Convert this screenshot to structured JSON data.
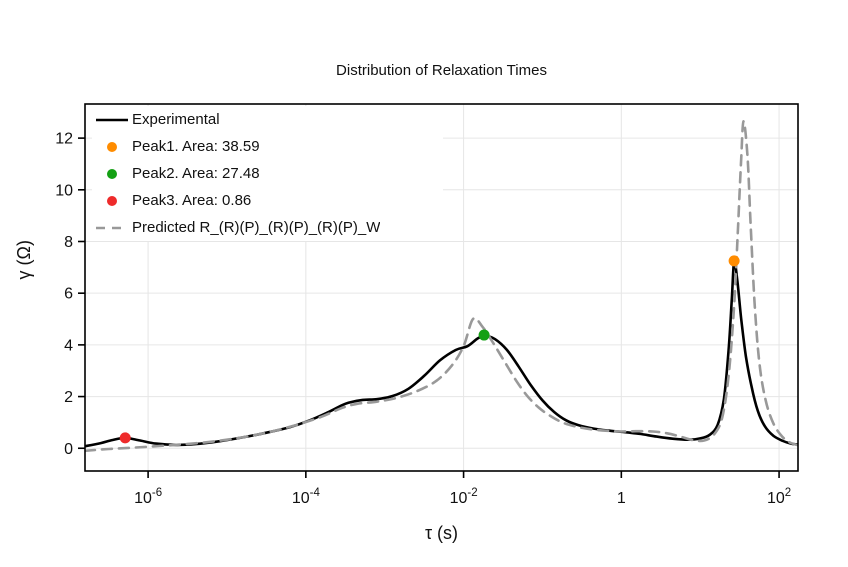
{
  "chart_data": {
    "type": "line",
    "title": "Distribution of Relaxation Times",
    "xlabel": "τ (s)",
    "ylabel": "γ (Ω)",
    "x_scale": "log10",
    "x_range": [
      -6.8,
      2.24
    ],
    "y_range": [
      -0.88,
      13.32
    ],
    "grid": true,
    "legend_position": "top-left",
    "frame_color": "#000000",
    "grid_color": "#e6e6e6",
    "x_ticks": [
      {
        "v": -6,
        "base": "10",
        "exp": "-6"
      },
      {
        "v": -4,
        "base": "10",
        "exp": "-4"
      },
      {
        "v": -2,
        "base": "10",
        "exp": "-2"
      },
      {
        "v": 0,
        "label": "1"
      },
      {
        "v": 2,
        "base": "10",
        "exp": "2"
      }
    ],
    "y_ticks": [
      0,
      2,
      4,
      6,
      8,
      10,
      12
    ],
    "series": [
      {
        "name": "Experimental",
        "color": "#000000",
        "style": "solid",
        "width": 2.6,
        "points": [
          [
            -6.8,
            0.08
          ],
          [
            -6.6,
            0.2
          ],
          [
            -6.45,
            0.32
          ],
          [
            -6.29,
            0.4
          ],
          [
            -6.1,
            0.3
          ],
          [
            -5.9,
            0.18
          ],
          [
            -5.65,
            0.13
          ],
          [
            -5.4,
            0.16
          ],
          [
            -5.1,
            0.27
          ],
          [
            -4.8,
            0.42
          ],
          [
            -4.5,
            0.6
          ],
          [
            -4.2,
            0.82
          ],
          [
            -3.95,
            1.08
          ],
          [
            -3.7,
            1.42
          ],
          [
            -3.5,
            1.72
          ],
          [
            -3.3,
            1.86
          ],
          [
            -3.1,
            1.9
          ],
          [
            -2.9,
            2.02
          ],
          [
            -2.7,
            2.3
          ],
          [
            -2.5,
            2.8
          ],
          [
            -2.3,
            3.4
          ],
          [
            -2.1,
            3.8
          ],
          [
            -1.95,
            3.95
          ],
          [
            -1.82,
            4.25
          ],
          [
            -1.73,
            4.35
          ],
          [
            -1.6,
            4.22
          ],
          [
            -1.45,
            3.8
          ],
          [
            -1.3,
            3.15
          ],
          [
            -1.15,
            2.45
          ],
          [
            -1.0,
            1.85
          ],
          [
            -0.85,
            1.4
          ],
          [
            -0.7,
            1.08
          ],
          [
            -0.55,
            0.9
          ],
          [
            -0.35,
            0.76
          ],
          [
            -0.15,
            0.68
          ],
          [
            0.05,
            0.62
          ],
          [
            0.25,
            0.55
          ],
          [
            0.45,
            0.45
          ],
          [
            0.65,
            0.37
          ],
          [
            0.85,
            0.33
          ],
          [
            1.0,
            0.38
          ],
          [
            1.12,
            0.52
          ],
          [
            1.22,
            0.9
          ],
          [
            1.3,
            1.9
          ],
          [
            1.36,
            3.8
          ],
          [
            1.4,
            5.7
          ],
          [
            1.43,
            7.25
          ],
          [
            1.47,
            6.5
          ],
          [
            1.52,
            5.0
          ],
          [
            1.58,
            3.55
          ],
          [
            1.65,
            2.4
          ],
          [
            1.73,
            1.45
          ],
          [
            1.82,
            0.85
          ],
          [
            1.93,
            0.48
          ],
          [
            2.05,
            0.28
          ],
          [
            2.15,
            0.18
          ],
          [
            2.24,
            0.15
          ]
        ]
      },
      {
        "name": "Predicted R_(R)(P)_(R)(P)_(R)(P)_W",
        "color": "#999999",
        "style": "dashed",
        "width": 2.6,
        "points": [
          [
            -6.8,
            -0.1
          ],
          [
            -6.5,
            -0.03
          ],
          [
            -6.2,
            0.02
          ],
          [
            -5.9,
            0.08
          ],
          [
            -5.6,
            0.14
          ],
          [
            -5.3,
            0.22
          ],
          [
            -5.0,
            0.33
          ],
          [
            -4.7,
            0.48
          ],
          [
            -4.4,
            0.67
          ],
          [
            -4.1,
            0.92
          ],
          [
            -3.8,
            1.22
          ],
          [
            -3.55,
            1.55
          ],
          [
            -3.35,
            1.72
          ],
          [
            -3.1,
            1.8
          ],
          [
            -2.85,
            1.95
          ],
          [
            -2.6,
            2.2
          ],
          [
            -2.35,
            2.6
          ],
          [
            -2.15,
            3.2
          ],
          [
            -2.0,
            3.95
          ],
          [
            -1.88,
            5.0
          ],
          [
            -1.76,
            4.7
          ],
          [
            -1.62,
            4.05
          ],
          [
            -1.48,
            3.35
          ],
          [
            -1.34,
            2.65
          ],
          [
            -1.2,
            2.05
          ],
          [
            -1.05,
            1.58
          ],
          [
            -0.9,
            1.25
          ],
          [
            -0.75,
            1.0
          ],
          [
            -0.58,
            0.84
          ],
          [
            -0.4,
            0.74
          ],
          [
            -0.2,
            0.68
          ],
          [
            0.0,
            0.65
          ],
          [
            0.2,
            0.66
          ],
          [
            0.4,
            0.65
          ],
          [
            0.58,
            0.58
          ],
          [
            0.75,
            0.45
          ],
          [
            0.9,
            0.32
          ],
          [
            1.05,
            0.3
          ],
          [
            1.18,
            0.55
          ],
          [
            1.28,
            1.2
          ],
          [
            1.36,
            2.8
          ],
          [
            1.43,
            5.5
          ],
          [
            1.48,
            8.6
          ],
          [
            1.52,
            11.2
          ],
          [
            1.55,
            12.65
          ],
          [
            1.6,
            11.3
          ],
          [
            1.64,
            8.6
          ],
          [
            1.69,
            5.6
          ],
          [
            1.75,
            3.3
          ],
          [
            1.83,
            1.85
          ],
          [
            1.93,
            0.95
          ],
          [
            2.04,
            0.45
          ],
          [
            2.14,
            0.22
          ],
          [
            2.24,
            0.12
          ]
        ]
      }
    ],
    "markers": [
      {
        "id": "peak1",
        "name": "Peak1. Area: 38.59",
        "color": "#ff8c00",
        "x": 1.43,
        "y": 7.25,
        "area": 38.59
      },
      {
        "id": "peak2",
        "name": "Peak2. Area: 27.48",
        "color": "#14a014",
        "x": -1.74,
        "y": 4.38,
        "area": 27.48
      },
      {
        "id": "peak3",
        "name": "Peak3. Area: 0.86",
        "color": "#ee2b2b",
        "x": -6.29,
        "y": 0.4,
        "area": 0.86
      }
    ]
  }
}
